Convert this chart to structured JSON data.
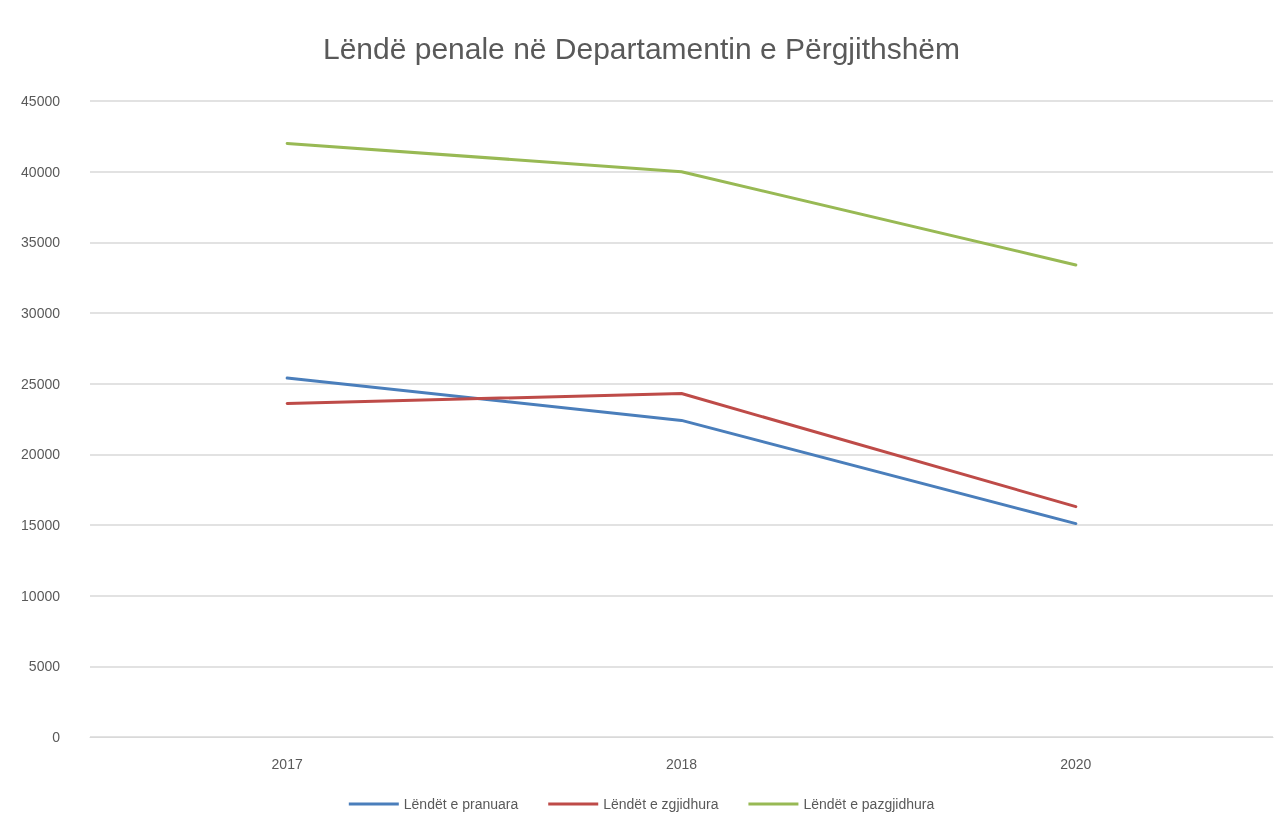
{
  "chart_data": {
    "type": "line",
    "title": "Lëndë penale në Departamentin e Përgjithshëm",
    "categories": [
      "2017",
      "2018",
      "2020"
    ],
    "series": [
      {
        "name": "Lëndët e pranuara",
        "color": "#4a7ebb",
        "values": [
          25400,
          22400,
          15100
        ]
      },
      {
        "name": "Lëndët e zgjidhura",
        "color": "#be4b48",
        "values": [
          23600,
          24300,
          16300
        ]
      },
      {
        "name": "Lëndët e pazgjidhura",
        "color": "#98b954",
        "values": [
          42000,
          40000,
          33400
        ]
      }
    ],
    "ylim": [
      0,
      45000
    ],
    "yticks": [
      0,
      5000,
      10000,
      15000,
      20000,
      25000,
      30000,
      35000,
      40000,
      45000
    ],
    "grid": "y",
    "legend": "bottom",
    "marker": "none",
    "line_style": "solid"
  }
}
